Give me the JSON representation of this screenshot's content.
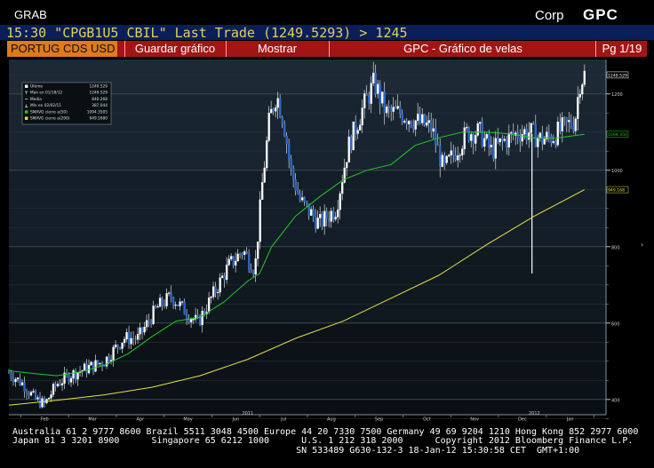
{
  "header": {
    "function_name": "GRAB",
    "market_sector": "Corp",
    "function_code": "GPC"
  },
  "ticker_line": "15:30 \"CPGB1U5 CBIL\" Last Trade (1249.5293) > 1245",
  "menu": {
    "security_tab": "PORTUG CDS USD",
    "save_chart": "Guardar gráfico",
    "show": "Mostrar",
    "title": "GPC - Gráfico de velas",
    "page": "Pg 1/19"
  },
  "legend": [
    {
      "label": "Último",
      "value": "1249.529",
      "color": "#ffffff",
      "marker": "square"
    },
    {
      "label": "Máx en 01/18/12",
      "value": "1249.529",
      "color": "#ffffff",
      "marker": "up-tick"
    },
    {
      "label": "Media",
      "value": "840.268",
      "color": "#ffffff",
      "marker": "dash"
    },
    {
      "label": "Mín en 02/02/11",
      "value": "387.044",
      "color": "#ffffff",
      "marker": "down-tick"
    },
    {
      "label": "SMAVG cierre a(50)",
      "value": "1094.3505",
      "color": "#22cc22",
      "marker": "square"
    },
    {
      "label": "SMAVG cierre a(200)",
      "value": "949.1680",
      "color": "#e8e040",
      "marker": "square"
    }
  ],
  "footer": [
    "Australia 61 2 9777 8600 Brazil 5511 3048 4500 Europe 44 20 7330 7500 Germany 49 69 9204 1210 Hong Kong 852 2977 6000",
    "Japan 81 3 3201 8900      Singapore 65 6212 1000      U.S. 1 212 318 2000      Copyright 2012 Bloomberg Finance L.P.",
    "                                                     SN 533489 G630-132-3 18-Jan-12 15:30:58 CET  GMT+1:00"
  ],
  "chart_data": {
    "type": "candlestick",
    "ylim": [
      360,
      1290
    ],
    "y_ticks": [
      400,
      600,
      800,
      1000,
      1200
    ],
    "y_tick_labels": [
      "400",
      "600",
      "800",
      "1000",
      "1200"
    ],
    "x_range": [
      0,
      12.5
    ],
    "x_ticks": [
      {
        "pos": 0.75,
        "label": "Feb"
      },
      {
        "pos": 1.75,
        "label": "Mar"
      },
      {
        "pos": 2.75,
        "label": "Apr"
      },
      {
        "pos": 3.75,
        "label": "May"
      },
      {
        "pos": 4.75,
        "label": "Jun"
      },
      {
        "pos": 5.75,
        "label": "Jul",
        "year": "2011"
      },
      {
        "pos": 6.75,
        "label": "Aug"
      },
      {
        "pos": 7.75,
        "label": "Sep"
      },
      {
        "pos": 8.75,
        "label": "Oct"
      },
      {
        "pos": 9.75,
        "label": "Nov"
      },
      {
        "pos": 10.75,
        "label": "Dec"
      },
      {
        "pos": 11.75,
        "label": "Jan",
        "year": "2012"
      }
    ],
    "price_points": [
      [
        0.0,
        470
      ],
      [
        0.3,
        440
      ],
      [
        0.55,
        400
      ],
      [
        0.75,
        387
      ],
      [
        1.0,
        440
      ],
      [
        1.3,
        465
      ],
      [
        1.6,
        480
      ],
      [
        2.0,
        500
      ],
      [
        2.4,
        560
      ],
      [
        2.7,
        560
      ],
      [
        3.1,
        640
      ],
      [
        3.4,
        670
      ],
      [
        3.7,
        630
      ],
      [
        3.95,
        600
      ],
      [
        4.3,
        680
      ],
      [
        4.6,
        750
      ],
      [
        4.9,
        790
      ],
      [
        5.15,
        740
      ],
      [
        5.3,
        960
      ],
      [
        5.45,
        1130
      ],
      [
        5.6,
        1200
      ],
      [
        5.75,
        1130
      ],
      [
        5.9,
        1000
      ],
      [
        6.1,
        920
      ],
      [
        6.5,
        860
      ],
      [
        6.85,
        900
      ],
      [
        7.1,
        1060
      ],
      [
        7.4,
        1160
      ],
      [
        7.65,
        1230
      ],
      [
        7.9,
        1150
      ],
      [
        8.2,
        1150
      ],
      [
        8.5,
        1130
      ],
      [
        8.85,
        1110
      ],
      [
        9.1,
        1000
      ],
      [
        9.35,
        1050
      ],
      [
        9.6,
        1100
      ],
      [
        9.85,
        1100
      ],
      [
        10.1,
        1050
      ],
      [
        10.4,
        1080
      ],
      [
        10.7,
        1100
      ],
      [
        10.9,
        1100
      ],
      [
        11.15,
        1080
      ],
      [
        11.4,
        1090
      ],
      [
        11.6,
        1110
      ],
      [
        11.85,
        1130
      ],
      [
        11.95,
        1230
      ],
      [
        12.05,
        1249.5
      ]
    ],
    "outliers": [
      {
        "x": 10.95,
        "low": 730
      }
    ],
    "last_value": 1249.529,
    "max": {
      "date": "01/18/12",
      "value": 1249.529
    },
    "mean": 840.268,
    "min": {
      "date": "02/02/11",
      "value": 387.044
    },
    "series": [
      {
        "name": "SMAVG cierre a(50)",
        "color": "#22cc22",
        "last": 1094.3505,
        "points": [
          [
            0,
            475
          ],
          [
            0.5,
            468
          ],
          [
            1.0,
            462
          ],
          [
            1.5,
            472
          ],
          [
            2.0,
            490
          ],
          [
            2.5,
            520
          ],
          [
            3.0,
            565
          ],
          [
            3.5,
            605
          ],
          [
            4.0,
            615
          ],
          [
            4.5,
            655
          ],
          [
            5.0,
            710
          ],
          [
            5.25,
            730
          ],
          [
            5.5,
            800
          ],
          [
            6.0,
            880
          ],
          [
            6.5,
            930
          ],
          [
            7.0,
            975
          ],
          [
            7.5,
            1000
          ],
          [
            8.0,
            1015
          ],
          [
            8.5,
            1065
          ],
          [
            9.0,
            1085
          ],
          [
            9.5,
            1100
          ],
          [
            10.0,
            1100
          ],
          [
            10.5,
            1095
          ],
          [
            11.0,
            1085
          ],
          [
            11.5,
            1085
          ],
          [
            12.05,
            1094.35
          ]
        ]
      },
      {
        "name": "SMAVG cierre a(200)",
        "color": "#e8e040",
        "last": 949.168,
        "points": [
          [
            0,
            385
          ],
          [
            1.0,
            398
          ],
          [
            2.0,
            412
          ],
          [
            3.0,
            432
          ],
          [
            4.0,
            462
          ],
          [
            5.0,
            505
          ],
          [
            6.0,
            560
          ],
          [
            7.0,
            605
          ],
          [
            8.0,
            665
          ],
          [
            9.0,
            725
          ],
          [
            10.0,
            805
          ],
          [
            11.0,
            880
          ],
          [
            12.05,
            949.168
          ]
        ]
      }
    ],
    "value_labels": [
      {
        "value": 1249.529,
        "text": "1249.529",
        "color": "#ffffff"
      },
      {
        "value": 1094.3505,
        "text": "1094.350",
        "color": "#22cc22"
      },
      {
        "value": 949.168,
        "text": "949.168",
        "color": "#e8e040"
      }
    ],
    "grid": true,
    "legend_position": "top-left"
  }
}
